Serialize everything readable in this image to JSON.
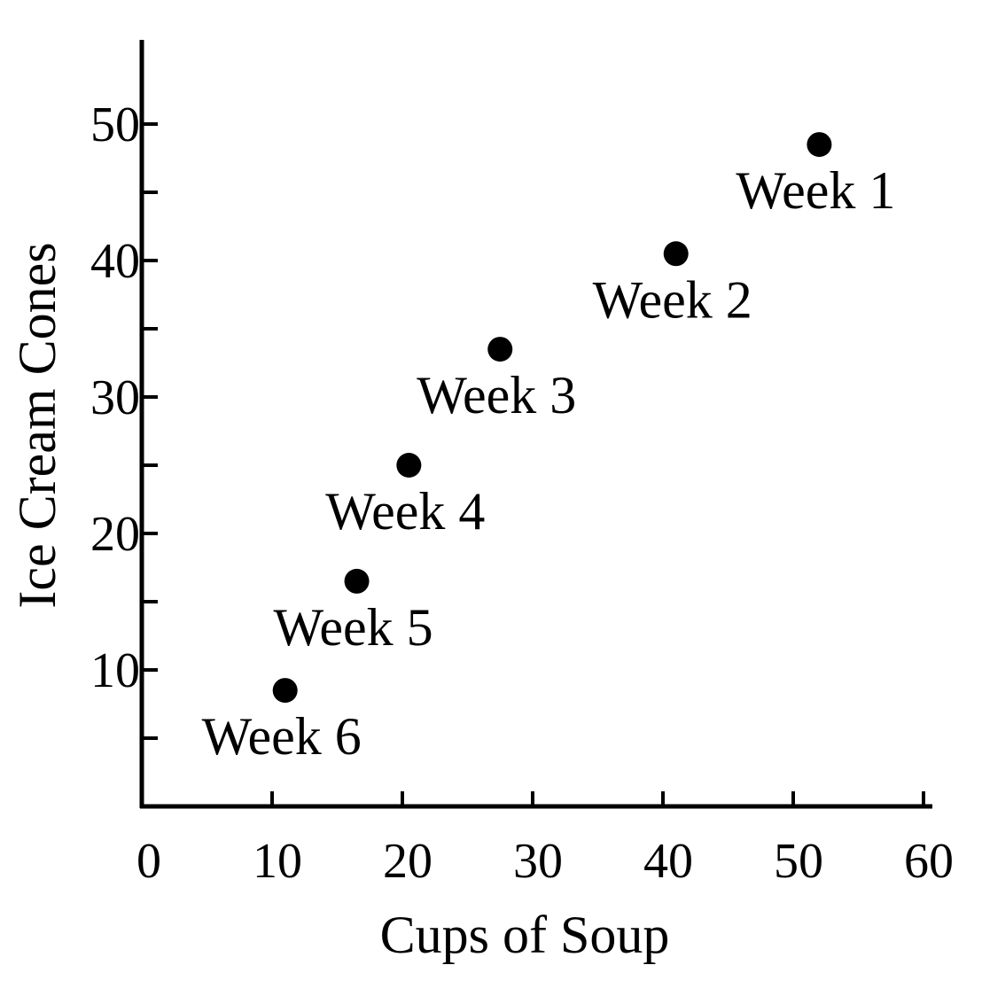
{
  "chart_data": {
    "type": "scatter",
    "title": "",
    "xlabel": "Cups of Soup",
    "ylabel": "Ice Cream Cones",
    "xlim": [
      0,
      60
    ],
    "ylim": [
      0,
      55
    ],
    "x_ticks": [
      "0",
      "10",
      "20",
      "30",
      "40",
      "50",
      "60"
    ],
    "y_ticks": [
      "10",
      "20",
      "30",
      "40",
      "50"
    ],
    "grid": false,
    "legend": "none",
    "points": [
      {
        "label": "Week 1",
        "x": 52,
        "y": 48.5
      },
      {
        "label": "Week 2",
        "x": 41,
        "y": 40.5
      },
      {
        "label": "Week 3",
        "x": 27.5,
        "y": 33.5
      },
      {
        "label": "Week 4",
        "x": 20.5,
        "y": 25
      },
      {
        "label": "Week 5",
        "x": 16.5,
        "y": 16.5
      },
      {
        "label": "Week 6",
        "x": 11,
        "y": 8.5
      }
    ],
    "colors": {
      "marker": "#000000",
      "axis": "#000000"
    }
  }
}
